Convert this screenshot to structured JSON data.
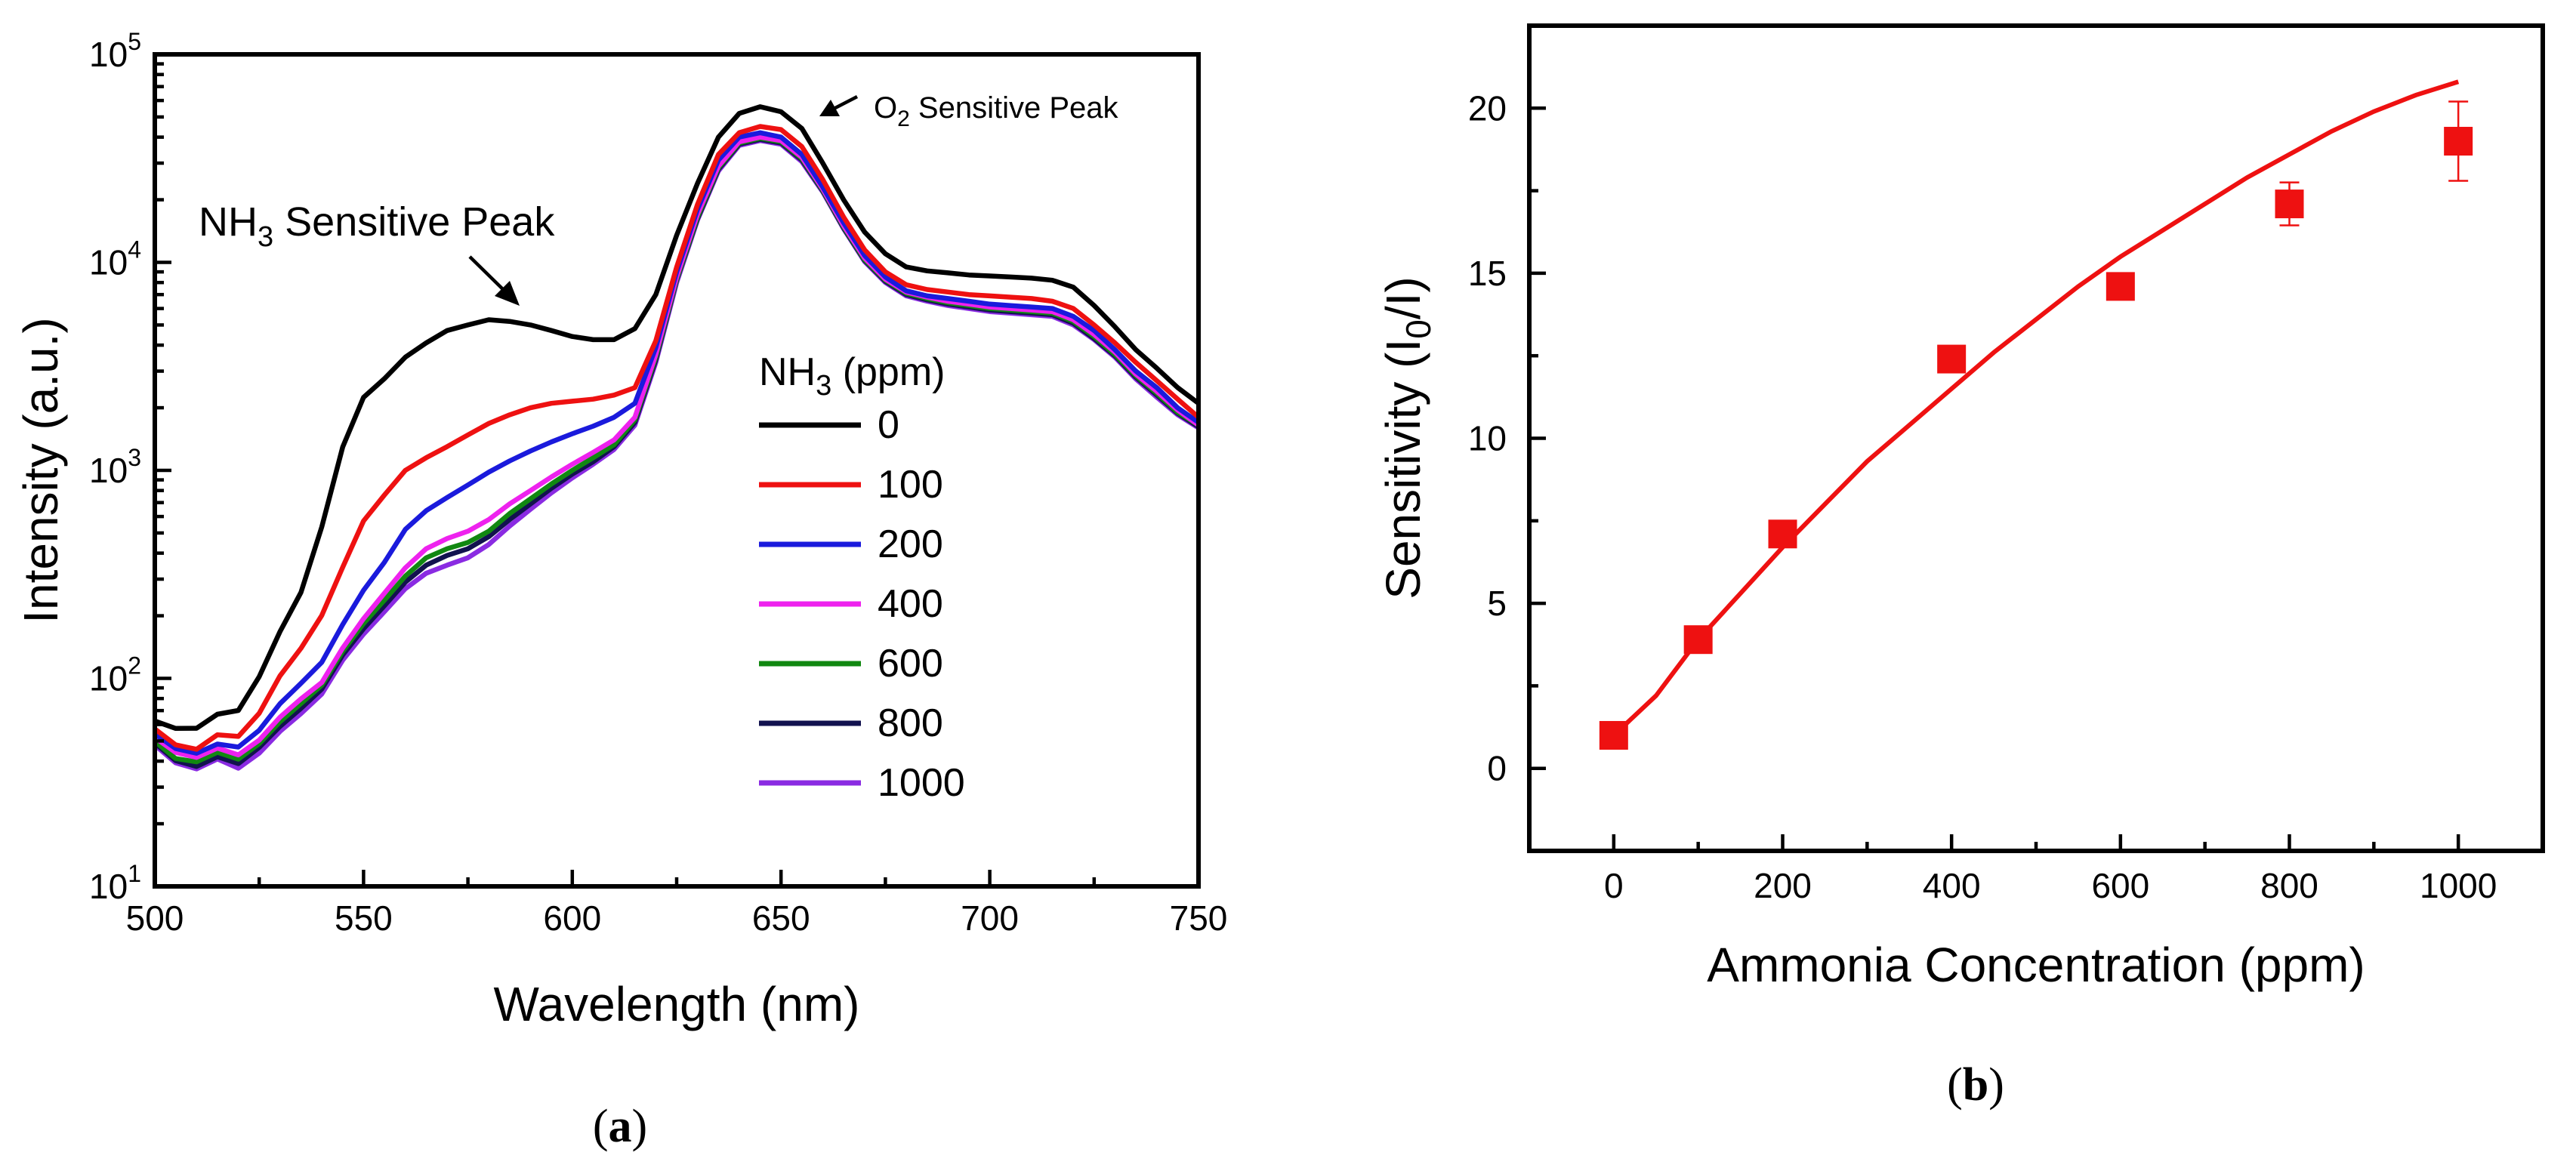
{
  "chart_data": [
    {
      "id": "a",
      "type": "line",
      "caption": {
        "open": "(",
        "letter": "a",
        "close": ")"
      },
      "xlabel": "Wavelength (nm)",
      "ylabel": "Intensity (a.u.)",
      "xlim": [
        500,
        750
      ],
      "ylim": [
        10,
        100000
      ],
      "yscale": "log",
      "xticks": [
        500,
        550,
        600,
        650,
        700,
        750
      ],
      "yticks": [
        {
          "base": "10",
          "exp": "1"
        },
        {
          "base": "10",
          "exp": "2"
        },
        {
          "base": "10",
          "exp": "3"
        },
        {
          "base": "10",
          "exp": "4"
        },
        {
          "base": "10",
          "exp": "5"
        }
      ],
      "legend": {
        "title": {
          "prefix": "NH",
          "sub": "3",
          "suffix": " (ppm)"
        },
        "placement": "center-right"
      },
      "annotations": [
        {
          "prefix": "NH",
          "sub": "3",
          "suffix": " Sensitive Peak",
          "x": 588,
          "y": 5200
        },
        {
          "prefix": "O",
          "sub": "2",
          "suffix": " Sensitive Peak",
          "x": 652,
          "y": 54000
        }
      ],
      "series": [
        {
          "name": "0",
          "color": "#000000",
          "x": [
            500,
            505,
            510,
            515,
            520,
            525,
            530,
            535,
            540,
            545,
            550,
            555,
            560,
            565,
            570,
            575,
            580,
            585,
            590,
            595,
            600,
            605,
            610,
            615,
            620,
            625,
            630,
            635,
            640,
            645,
            650,
            655,
            660,
            665,
            670,
            675,
            680,
            685,
            690,
            695,
            700,
            705,
            710,
            715,
            720,
            725,
            730,
            735,
            740,
            745,
            750
          ],
          "y": [
            60,
            60,
            58,
            64,
            72,
            105,
            160,
            260,
            560,
            1250,
            2200,
            2900,
            3500,
            4100,
            4700,
            5000,
            5300,
            5200,
            5000,
            4700,
            4400,
            4250,
            4250,
            4800,
            7000,
            13500,
            24000,
            40000,
            52000,
            56000,
            53000,
            44000,
            30000,
            20000,
            14000,
            11000,
            9500,
            9100,
            8900,
            8700,
            8600,
            8500,
            8400,
            8200,
            7600,
            6200,
            4900,
            3800,
            3100,
            2500,
            2100
          ]
        },
        {
          "name": "100",
          "color": "#ee1111",
          "x": [
            500,
            505,
            510,
            515,
            520,
            525,
            530,
            535,
            540,
            545,
            550,
            555,
            560,
            565,
            570,
            575,
            580,
            585,
            590,
            595,
            600,
            605,
            610,
            615,
            620,
            625,
            630,
            635,
            640,
            645,
            650,
            655,
            660,
            665,
            670,
            675,
            680,
            685,
            690,
            695,
            700,
            705,
            710,
            715,
            720,
            725,
            730,
            735,
            740,
            745,
            750
          ],
          "y": [
            55,
            50,
            46,
            51,
            54,
            70,
            98,
            140,
            210,
            330,
            560,
            800,
            1000,
            1150,
            1300,
            1480,
            1680,
            1850,
            2000,
            2100,
            2150,
            2200,
            2300,
            2500,
            4200,
            9500,
            19000,
            33000,
            42000,
            45000,
            43500,
            36000,
            25000,
            16500,
            11500,
            9000,
            7800,
            7400,
            7200,
            7000,
            6900,
            6800,
            6700,
            6500,
            6000,
            5000,
            4100,
            3300,
            2700,
            2200,
            1800
          ]
        },
        {
          "name": "200",
          "color": "#1a1adc",
          "x": [
            500,
            505,
            510,
            515,
            520,
            525,
            530,
            535,
            540,
            545,
            550,
            555,
            560,
            565,
            570,
            575,
            580,
            585,
            590,
            595,
            600,
            605,
            610,
            615,
            620,
            625,
            630,
            635,
            640,
            645,
            650,
            655,
            660,
            665,
            670,
            675,
            680,
            685,
            690,
            695,
            700,
            705,
            710,
            715,
            720,
            725,
            730,
            735,
            740,
            745,
            750
          ],
          "y": [
            52,
            48,
            44,
            46,
            48,
            58,
            72,
            95,
            125,
            175,
            260,
            380,
            520,
            640,
            740,
            850,
            980,
            1110,
            1240,
            1370,
            1500,
            1630,
            1800,
            2100,
            3900,
            9000,
            18000,
            31000,
            40000,
            42000,
            40000,
            33000,
            23000,
            15500,
            10800,
            8500,
            7300,
            6900,
            6700,
            6500,
            6300,
            6200,
            6100,
            6000,
            5500,
            4700,
            3800,
            3000,
            2500,
            2000,
            1700
          ]
        },
        {
          "name": "400",
          "color": "#ee22ee",
          "x": [
            500,
            505,
            510,
            515,
            520,
            525,
            530,
            535,
            540,
            545,
            550,
            555,
            560,
            565,
            570,
            575,
            580,
            585,
            590,
            595,
            600,
            605,
            610,
            615,
            620,
            625,
            630,
            635,
            640,
            645,
            650,
            655,
            660,
            665,
            670,
            675,
            680,
            685,
            690,
            695,
            700,
            705,
            710,
            715,
            720,
            725,
            730,
            735,
            740,
            745,
            750
          ],
          "y": [
            50,
            46,
            42,
            44,
            44,
            52,
            62,
            80,
            100,
            135,
            190,
            270,
            340,
            420,
            470,
            510,
            580,
            690,
            800,
            930,
            1070,
            1220,
            1400,
            1800,
            3600,
            8500,
            17000,
            29000,
            38000,
            40000,
            38500,
            32000,
            22500,
            15000,
            10500,
            8300,
            7200,
            6800,
            6500,
            6300,
            6100,
            6000,
            5900,
            5800,
            5300,
            4500,
            3700,
            2900,
            2400,
            1950,
            1650
          ]
        },
        {
          "name": "600",
          "color": "#118811",
          "x": [
            500,
            505,
            510,
            515,
            520,
            525,
            530,
            535,
            540,
            545,
            550,
            555,
            560,
            565,
            570,
            575,
            580,
            585,
            590,
            595,
            600,
            605,
            610,
            615,
            620,
            625,
            630,
            635,
            640,
            645,
            650,
            655,
            660,
            665,
            670,
            675,
            680,
            685,
            690,
            695,
            700,
            705,
            710,
            715,
            720,
            725,
            730,
            735,
            740,
            745,
            750
          ],
          "y": [
            48,
            43,
            40,
            42,
            42,
            50,
            59,
            76,
            97,
            130,
            180,
            250,
            310,
            380,
            420,
            450,
            510,
            620,
            730,
            860,
            1000,
            1150,
            1330,
            1750,
            3500,
            8300,
            16500,
            28500,
            37500,
            39500,
            38000,
            31500,
            22200,
            14800,
            10300,
            8200,
            7100,
            6700,
            6400,
            6200,
            6000,
            5900,
            5800,
            5700,
            5200,
            4400,
            3600,
            2850,
            2350,
            1900,
            1650
          ]
        },
        {
          "name": "800",
          "color": "#12124f",
          "x": [
            500,
            505,
            510,
            515,
            520,
            525,
            530,
            535,
            540,
            545,
            550,
            555,
            560,
            565,
            570,
            575,
            580,
            585,
            590,
            595,
            600,
            605,
            610,
            615,
            620,
            625,
            630,
            635,
            640,
            645,
            650,
            655,
            660,
            665,
            670,
            675,
            680,
            685,
            690,
            695,
            700,
            705,
            710,
            715,
            720,
            725,
            730,
            735,
            740,
            745,
            750
          ],
          "y": [
            47,
            42,
            38,
            40,
            40,
            48,
            56,
            72,
            93,
            125,
            170,
            235,
            290,
            350,
            390,
            420,
            480,
            580,
            690,
            820,
            960,
            1100,
            1300,
            1700,
            3400,
            8200,
            16200,
            28000,
            37000,
            39000,
            37500,
            31000,
            22000,
            14600,
            10200,
            8100,
            7000,
            6600,
            6300,
            6100,
            5900,
            5800,
            5700,
            5600,
            5100,
            4300,
            3550,
            2800,
            2300,
            1880,
            1620
          ]
        },
        {
          "name": "1000",
          "color": "#8a2be2",
          "x": [
            500,
            505,
            510,
            515,
            520,
            525,
            530,
            535,
            540,
            545,
            550,
            555,
            560,
            565,
            570,
            575,
            580,
            585,
            590,
            595,
            600,
            605,
            610,
            615,
            620,
            625,
            630,
            635,
            640,
            645,
            650,
            655,
            660,
            665,
            670,
            675,
            680,
            685,
            690,
            695,
            700,
            705,
            710,
            715,
            720,
            725,
            730,
            735,
            740,
            745,
            750
          ],
          "y": [
            46,
            41,
            37,
            39,
            38,
            45,
            53,
            68,
            88,
            118,
            160,
            220,
            270,
            320,
            350,
            380,
            440,
            540,
            650,
            780,
            920,
            1070,
            1260,
            1650,
            3300,
            8000,
            16000,
            27500,
            36500,
            38500,
            37000,
            30500,
            21800,
            14500,
            10100,
            8000,
            6900,
            6500,
            6200,
            6000,
            5800,
            5700,
            5600,
            5500,
            5000,
            4250,
            3500,
            2750,
            2250,
            1850,
            1600
          ]
        }
      ]
    },
    {
      "id": "b",
      "type": "scatter",
      "caption": {
        "open": "(",
        "letter": "b",
        "close": ")"
      },
      "xlabel": "Ammonia Concentration (ppm)",
      "ylabel": {
        "prefix": "Sensitivity (I",
        "sub": "0",
        "suffix": "/I)"
      },
      "xlim": [
        -100,
        1100
      ],
      "ylim": [
        -2.5,
        22.5
      ],
      "xticks": [
        0,
        200,
        400,
        600,
        800,
        1000
      ],
      "yticks": [
        0,
        5,
        10,
        15,
        20
      ],
      "color": "#ee1111",
      "points": {
        "x": [
          0,
          100,
          200,
          400,
          600,
          800,
          1000
        ],
        "y": [
          1.0,
          3.9,
          7.1,
          12.4,
          14.6,
          17.1,
          19.0
        ],
        "err": [
          0.15,
          0.2,
          0.25,
          0.3,
          0.35,
          0.65,
          1.2
        ]
      },
      "fit": {
        "x": [
          0,
          50,
          100,
          150,
          200,
          250,
          300,
          350,
          400,
          450,
          500,
          550,
          600,
          650,
          700,
          750,
          800,
          850,
          900,
          950,
          1000
        ],
        "y": [
          1.0,
          2.2,
          3.9,
          5.3,
          6.7,
          8.0,
          9.3,
          10.4,
          11.5,
          12.6,
          13.6,
          14.6,
          15.5,
          16.3,
          17.1,
          17.9,
          18.6,
          19.3,
          19.9,
          20.4,
          20.8
        ]
      }
    }
  ]
}
